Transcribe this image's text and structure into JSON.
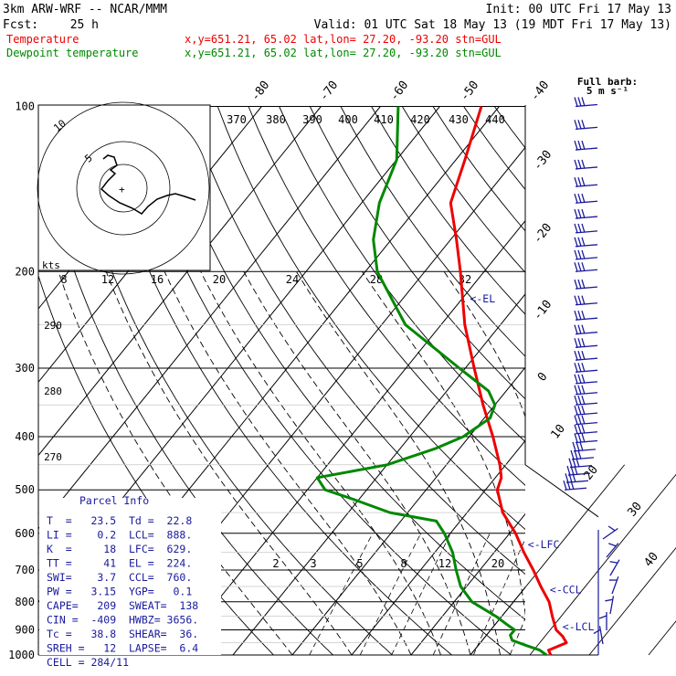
{
  "header": {
    "model": "3km ARW-WRF -- NCAR/MMM",
    "init": "Init: 00 UTC Fri 17 May 13",
    "fcst_label": "Fcst:",
    "fcst_value": "25 h",
    "valid": "Valid: 01 UTC Sat 18 May 13 (19 MDT Fri 17 May 13)"
  },
  "legend": [
    {
      "name": "Temperature",
      "color": "#ee0000",
      "info": "x,y=651.21, 65.02   lat,lon= 27.20, -93.20  stn=GUL"
    },
    {
      "name": "Dewpoint temperature",
      "color": "#008800",
      "info": "x,y=651.21, 65.02   lat,lon= 27.20, -93.20  stn=GUL"
    }
  ],
  "wind_key": {
    "title": "Full barb:",
    "value": "5 m s⁻¹"
  },
  "hodograph": {
    "units": "kts",
    "ring_labels": [
      "5",
      "10"
    ]
  },
  "mixing_ratio_axis": [
    "8",
    "12",
    "16",
    "20",
    "24",
    "28",
    "32"
  ],
  "theta_e_labels": [
    "370",
    "380",
    "390",
    "400",
    "410",
    "420",
    "430",
    "440"
  ],
  "theta_labels": [
    "290",
    "280",
    "270"
  ],
  "mixing_ratio_lines": [
    "2",
    "3",
    "5",
    "8",
    "12",
    "20"
  ],
  "level_markers": [
    {
      "label": "<-EL",
      "p": 224
    },
    {
      "label": "<-LFC",
      "p": 629
    },
    {
      "label": "<-CCL",
      "p": 760
    },
    {
      "label": "<-LCL",
      "p": 888
    }
  ],
  "parcel_info": {
    "title": "Parcel Info",
    "rows": [
      "T  =   23.5  Td =  22.8",
      "LI =    0.2  LCL=  888.",
      "K  =     18  LFC=  629.",
      "TT =     41  EL =  224.",
      "SWI=    3.7  CCL=  760.",
      "PW =   3.15  YGP=   0.1",
      "CAPE=   209  SWEAT=  138",
      "CIN =  -409  HWBZ= 3656.",
      "Tc =   38.8  SHEAR=  36.",
      "SREH =   12  LAPSE=  6.4",
      "CELL = 284/11"
    ]
  },
  "colors": {
    "temperature": "#ee0000",
    "dewpoint": "#008800",
    "annotation": "#1a1a9e",
    "hodograph": "#000000",
    "barbs": "#1a1a9e"
  },
  "chart_data": {
    "type": "line",
    "chart_kind": "skew-T log-p sounding",
    "y_axis": {
      "quantity": "pressure (hPa)",
      "scale": "log",
      "ticks": [
        100,
        200,
        300,
        400,
        500,
        600,
        700,
        800,
        900,
        1000
      ]
    },
    "isotherm_labels": [
      "-80",
      "-70",
      "-60",
      "-50",
      "-40",
      "-30",
      "-20",
      "-10",
      "0",
      "10",
      "20",
      "30",
      "40"
    ],
    "series": [
      {
        "name": "Temperature",
        "color": "#ee0000",
        "points": [
          [
            1000,
            23.5
          ],
          [
            980,
            22.5
          ],
          [
            950,
            24.5
          ],
          [
            925,
            23
          ],
          [
            900,
            21
          ],
          [
            850,
            18.5
          ],
          [
            800,
            16
          ],
          [
            750,
            12.5
          ],
          [
            700,
            9
          ],
          [
            650,
            5
          ],
          [
            600,
            1
          ],
          [
            550,
            -4
          ],
          [
            500,
            -8
          ],
          [
            475,
            -9
          ],
          [
            450,
            -11
          ],
          [
            400,
            -16
          ],
          [
            350,
            -22
          ],
          [
            300,
            -28.5
          ],
          [
            250,
            -36
          ],
          [
            200,
            -44
          ],
          [
            175,
            -49
          ],
          [
            150,
            -55
          ],
          [
            125,
            -58.5
          ],
          [
            100,
            -63
          ]
        ]
      },
      {
        "name": "Dewpoint temperature",
        "color": "#008800",
        "points": [
          [
            1000,
            22.8
          ],
          [
            980,
            21
          ],
          [
            960,
            18
          ],
          [
            940,
            15
          ],
          [
            920,
            14
          ],
          [
            900,
            14
          ],
          [
            880,
            12
          ],
          [
            850,
            9
          ],
          [
            800,
            3
          ],
          [
            750,
            -1
          ],
          [
            700,
            -4
          ],
          [
            650,
            -7
          ],
          [
            600,
            -11
          ],
          [
            570,
            -14
          ],
          [
            550,
            -23
          ],
          [
            520,
            -31
          ],
          [
            500,
            -37
          ],
          [
            475,
            -40
          ],
          [
            450,
            -30
          ],
          [
            420,
            -24
          ],
          [
            400,
            -21
          ],
          [
            370,
            -19
          ],
          [
            350,
            -20
          ],
          [
            330,
            -23
          ],
          [
            300,
            -31
          ],
          [
            250,
            -46
          ],
          [
            200,
            -58
          ],
          [
            175,
            -63
          ],
          [
            150,
            -67
          ],
          [
            125,
            -70
          ],
          [
            100,
            -77
          ]
        ]
      }
    ]
  }
}
